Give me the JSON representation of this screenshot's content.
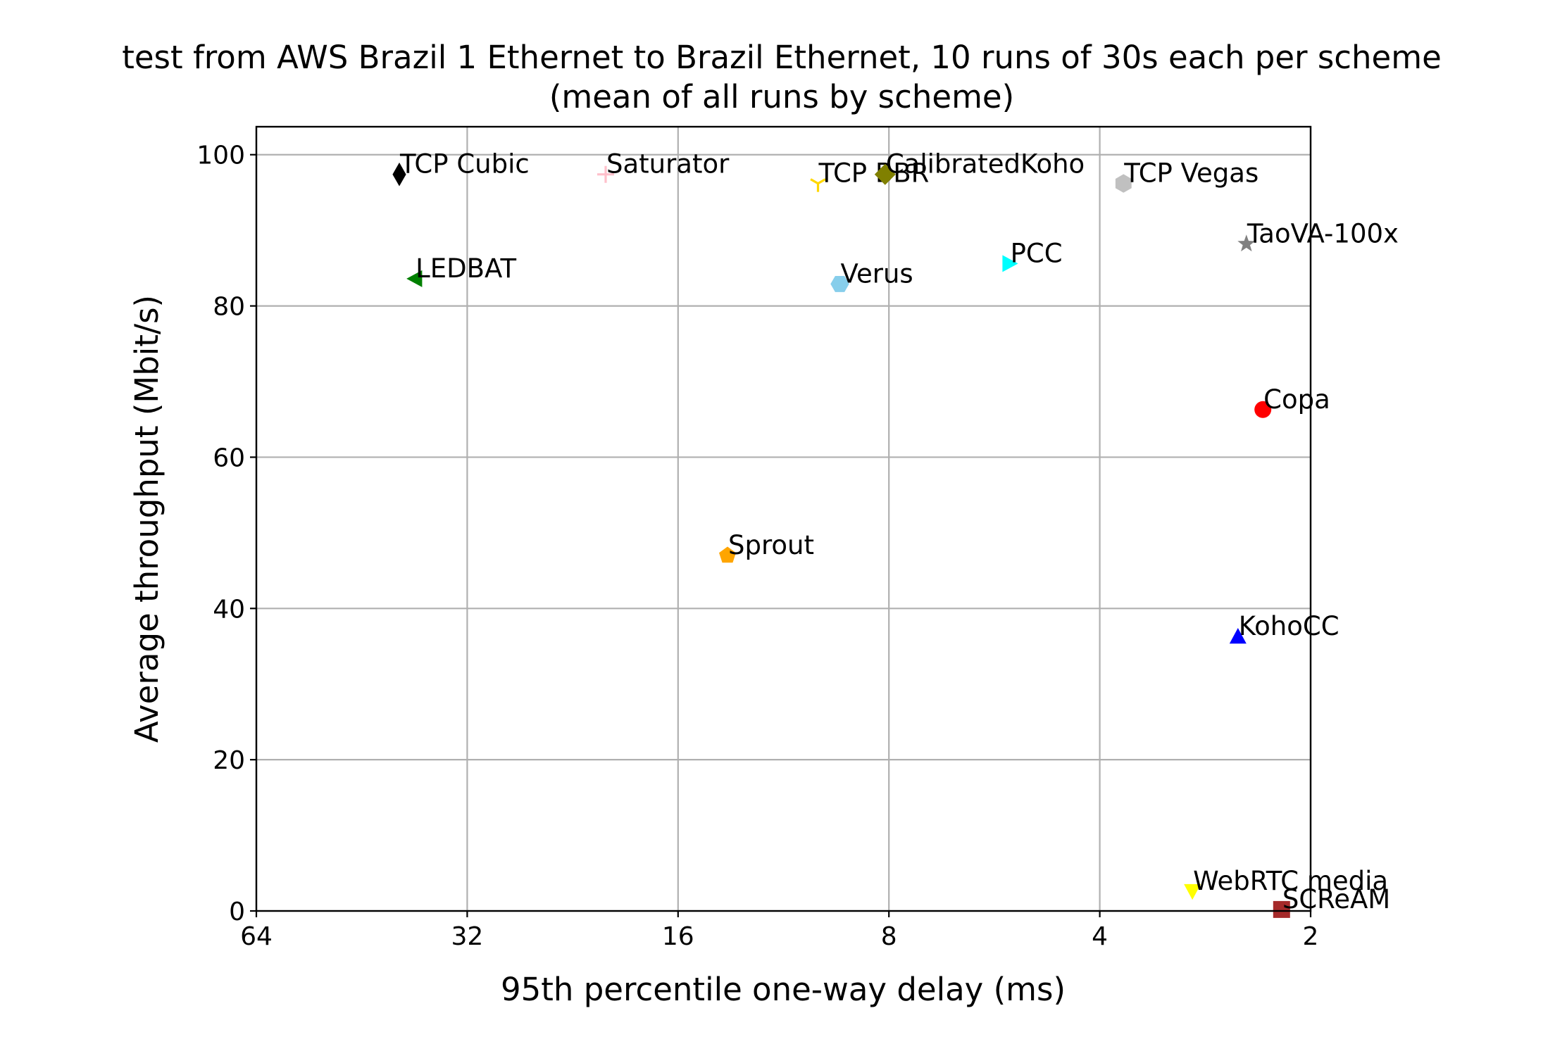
{
  "chart_data": {
    "type": "scatter",
    "title": "test from AWS Brazil 1 Ethernet to Brazil Ethernet, 10 runs of 30s each per scheme",
    "subtitle": "(mean of all runs by scheme)",
    "xlabel": "95th percentile one-way delay (ms)",
    "ylabel": "Average throughput (Mbit/s)",
    "x_scale": "log2",
    "x_inverted": true,
    "xlim": [
      64,
      2
    ],
    "ylim": [
      0,
      103.7
    ],
    "grid": true,
    "x_ticks": [
      {
        "value": 64,
        "label": "64"
      },
      {
        "value": 32,
        "label": "32"
      },
      {
        "value": 16,
        "label": "16"
      },
      {
        "value": 8,
        "label": "8"
      },
      {
        "value": 4,
        "label": "4"
      },
      {
        "value": 2,
        "label": "2"
      }
    ],
    "y_ticks": [
      {
        "value": 0,
        "label": "0"
      },
      {
        "value": 20,
        "label": "20"
      },
      {
        "value": 40,
        "label": "40"
      },
      {
        "value": 60,
        "label": "60"
      },
      {
        "value": 80,
        "label": "80"
      },
      {
        "value": 100,
        "label": "100"
      }
    ],
    "points": [
      {
        "name": "TCP Cubic",
        "x": 40.0,
        "y": 97.4,
        "color": "#000000",
        "marker": "thin-diamond"
      },
      {
        "name": "Saturator",
        "x": 20.3,
        "y": 97.4,
        "color": "#ffc0cb",
        "marker": "plus"
      },
      {
        "name": "TCP BBR",
        "x": 10.1,
        "y": 96.2,
        "color": "#ffd700",
        "marker": "tri-down"
      },
      {
        "name": "CalibratedKoho",
        "x": 8.1,
        "y": 97.4,
        "color": "#808000",
        "marker": "diamond"
      },
      {
        "name": "TCP Vegas",
        "x": 3.7,
        "y": 96.2,
        "color": "#c0c0c0",
        "marker": "hexagon"
      },
      {
        "name": "TaoVA-100x",
        "x": 2.47,
        "y": 88.2,
        "color": "#808080",
        "marker": "star"
      },
      {
        "name": "LEDBAT",
        "x": 38.0,
        "y": 83.6,
        "color": "#008000",
        "marker": "triangle-left"
      },
      {
        "name": "Verus",
        "x": 9.4,
        "y": 82.9,
        "color": "#87ceeb",
        "marker": "hexagon2"
      },
      {
        "name": "PCC",
        "x": 5.38,
        "y": 85.6,
        "color": "#00ffff",
        "marker": "triangle-right"
      },
      {
        "name": "Copa",
        "x": 2.34,
        "y": 66.3,
        "color": "#ff0000",
        "marker": "circle"
      },
      {
        "name": "Sprout",
        "x": 13.6,
        "y": 47.0,
        "color": "#ffa500",
        "marker": "pentagon"
      },
      {
        "name": "KohoCC",
        "x": 2.54,
        "y": 36.3,
        "color": "#0000ff",
        "marker": "triangle-up"
      },
      {
        "name": "WebRTC media",
        "x": 2.95,
        "y": 2.6,
        "color": "#ffff00",
        "marker": "triangle-down"
      },
      {
        "name": "SCReAM",
        "x": 2.2,
        "y": 0.2,
        "color": "#a52a2a",
        "marker": "square"
      }
    ]
  }
}
